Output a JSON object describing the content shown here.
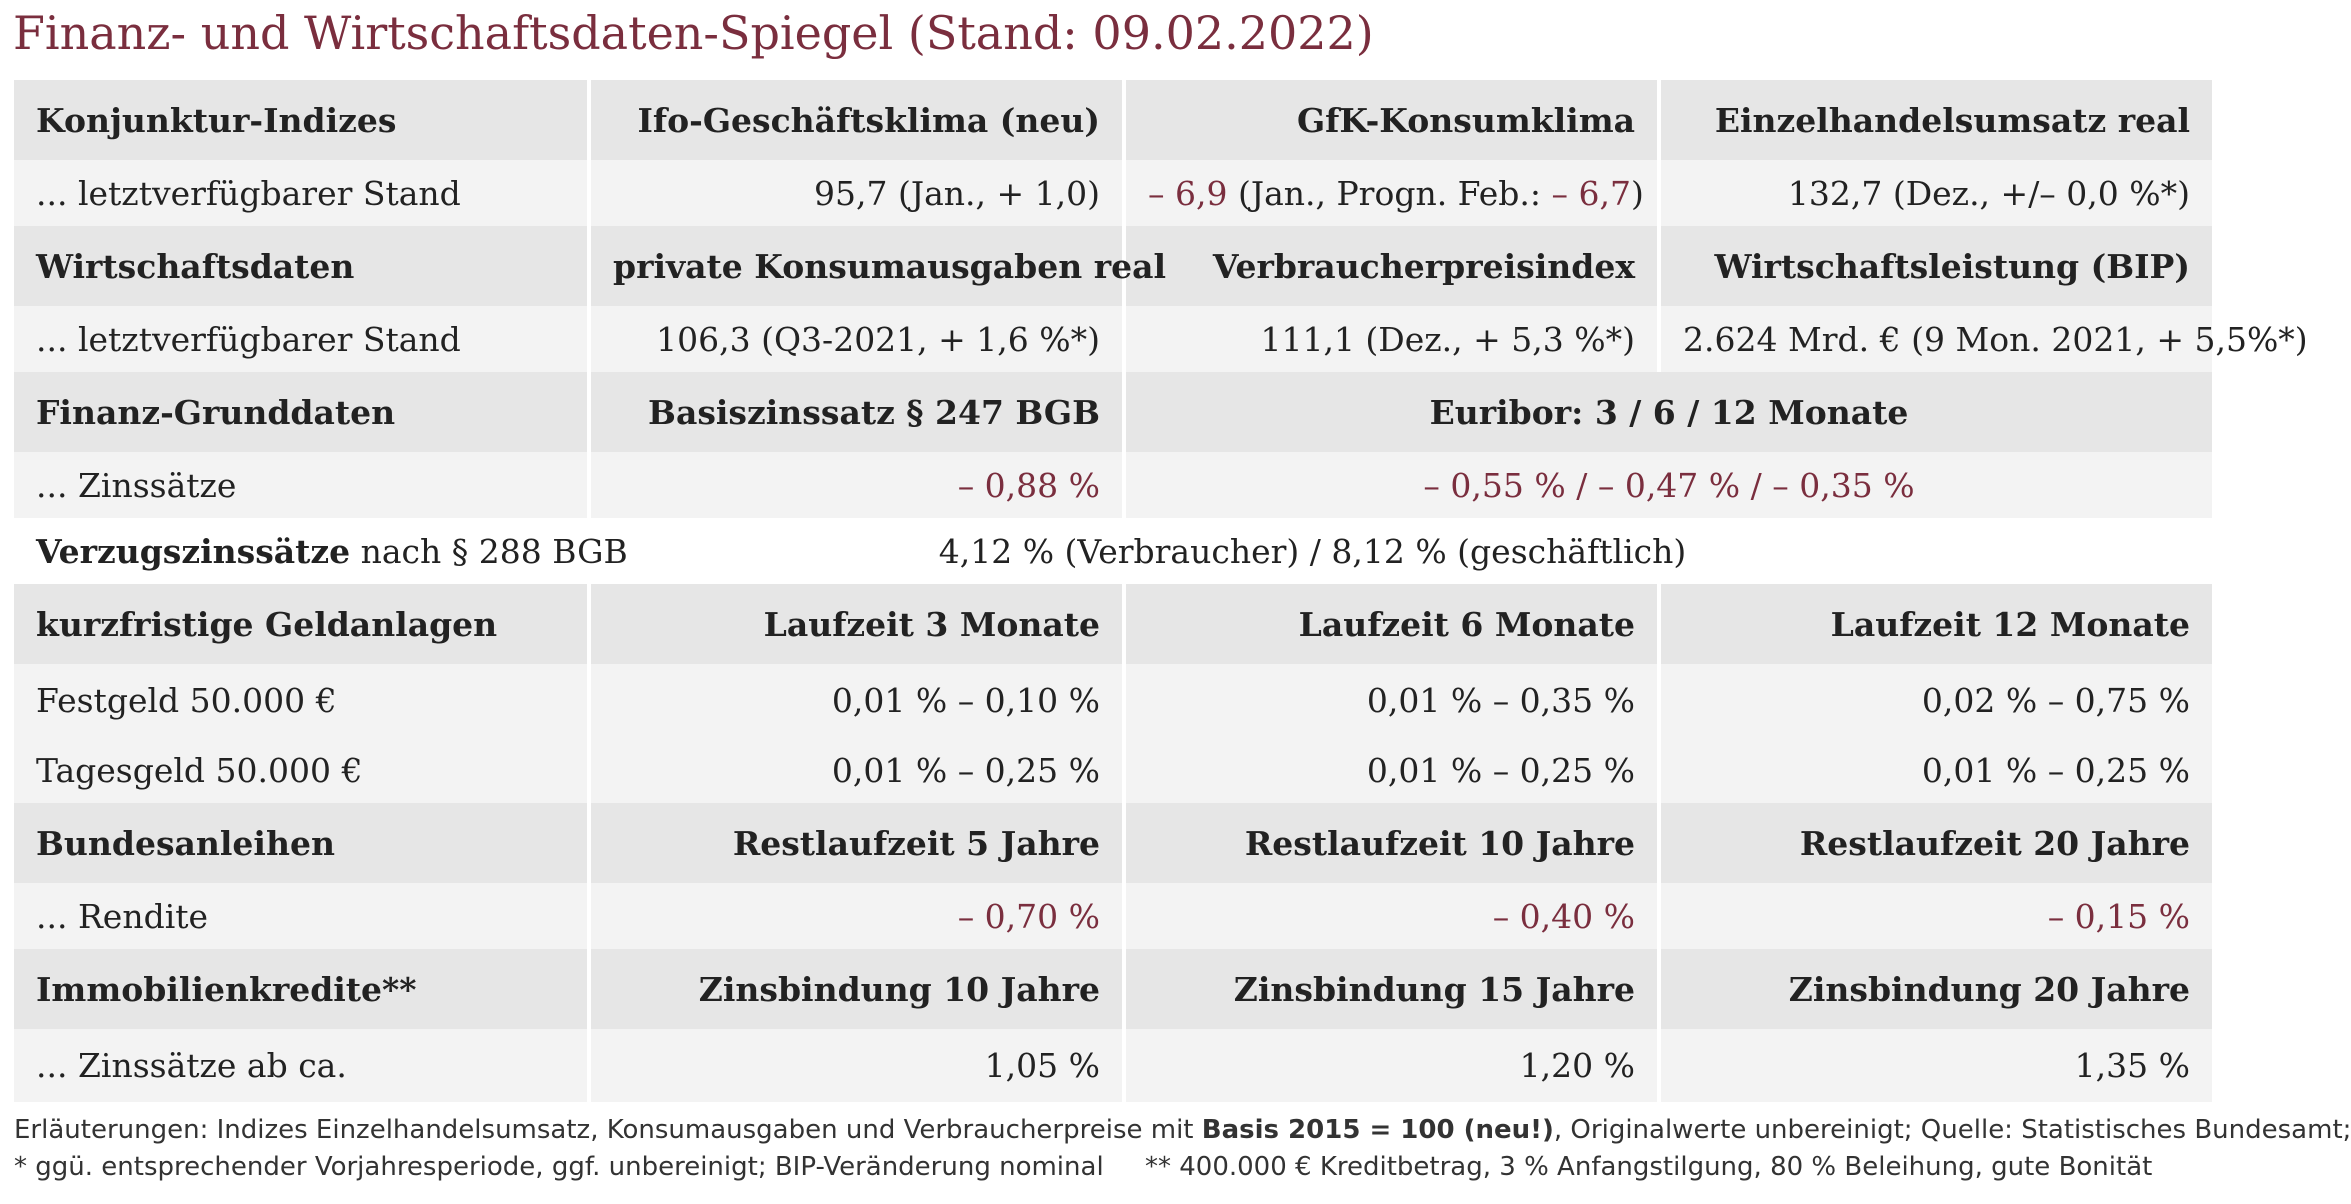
{
  "title": "Finanz- und Wirtschaftsdaten-Spiegel (Stand: 09.02.2022)",
  "colors": {
    "accent": "#7a2e3e",
    "header_bg": "#e6e6e6",
    "row_bg": "#f3f3f3"
  },
  "konjunktur": {
    "label": "Konjunktur-Indizes",
    "col1": "Ifo-Geschäftsklima (neu)",
    "col2": "GfK-Konsumklima",
    "col3": "Einzelhandelsumsatz real",
    "row_label": "... letztverfügbarer Stand",
    "v1": "95,7 (Jan., + 1,0)",
    "v2_neg1": "– 6,9",
    "v2_mid": " (Jan., Progn. Feb.: ",
    "v2_neg2": "– 6,7",
    "v2_end": ")",
    "v3": "132,7 (Dez., +/– 0,0 %*)"
  },
  "wirtschaft": {
    "label": "Wirtschaftsdaten",
    "col1": "private Konsumausgaben real",
    "col2": "Verbraucherpreisindex",
    "col3": "Wirtschaftsleistung (BIP)",
    "row_label": "... letztverfügbarer Stand",
    "v1": "106,3 (Q3-2021, + 1,6 %*)",
    "v2": "111,1 (Dez., + 5,3 %*)",
    "v3": "2.624 Mrd. € (9 Mon. 2021, + 5,5%*)"
  },
  "finanz": {
    "label": "Finanz-Grunddaten",
    "col1": "Basiszinssatz § 247 BGB",
    "col23": "Euribor: 3 / 6 / 12 Monate",
    "row_label": "... Zinssätze",
    "v1": "– 0,88 %",
    "v23": "– 0,55 % / – 0,47 % / – 0,35 %",
    "verzug_bold": "Verzugszinssätze",
    "verzug_rest": " nach § 288 BGB",
    "verzug_value": "4,12 % (Verbraucher) / 8,12 % (geschäftlich)"
  },
  "geldanlagen": {
    "label": "kurzfristige Geldanlagen",
    "col1": "Laufzeit 3 Monate",
    "col2": "Laufzeit 6 Monate",
    "col3": "Laufzeit 12 Monate",
    "rows": [
      {
        "label": "Festgeld 50.000 €",
        "v1": "0,01 % – 0,10 %",
        "v2": "0,01 % – 0,35 %",
        "v3": "0,02 % – 0,75 %"
      },
      {
        "label": "Tagesgeld 50.000 €",
        "v1": "0,01 % – 0,25 %",
        "v2": "0,01 % – 0,25 %",
        "v3": "0,01 % – 0,25 %"
      }
    ]
  },
  "anleihen": {
    "label": "Bundesanleihen",
    "col1": "Restlaufzeit 5 Jahre",
    "col2": "Restlaufzeit 10 Jahre",
    "col3": "Restlaufzeit 20 Jahre",
    "row_label": "... Rendite",
    "v1": "– 0,70 %",
    "v2": "– 0,40 %",
    "v3": "– 0,15 %"
  },
  "immo": {
    "label": "Immobilienkredite**",
    "col1": "Zinsbindung 10 Jahre",
    "col2": "Zinsbindung 15 Jahre",
    "col3": "Zinsbindung 20 Jahre",
    "row_label": "... Zinssätze ab ca.",
    "v1": "1,05 %",
    "v2": "1,20 %",
    "v3": "1,35 %"
  },
  "footer": {
    "line1_a": "Erläuterungen: Indizes Einzelhandelsumsatz, Konsumausgaben und Verbraucherpreise mit ",
    "line1_bold": "Basis 2015 = 100 (neu!)",
    "line1_b": ", Originalwerte unbereinigt; Quelle: Statistisches Bundesamt;",
    "line2": "* ggü. entsprechender Vorjahresperiode, ggf. unbereinigt; BIP-Veränderung nominal     ** 400.000 € Kreditbetrag, 3 % Anfangstilgung, 80 % Beleihung, gute Bonität"
  }
}
